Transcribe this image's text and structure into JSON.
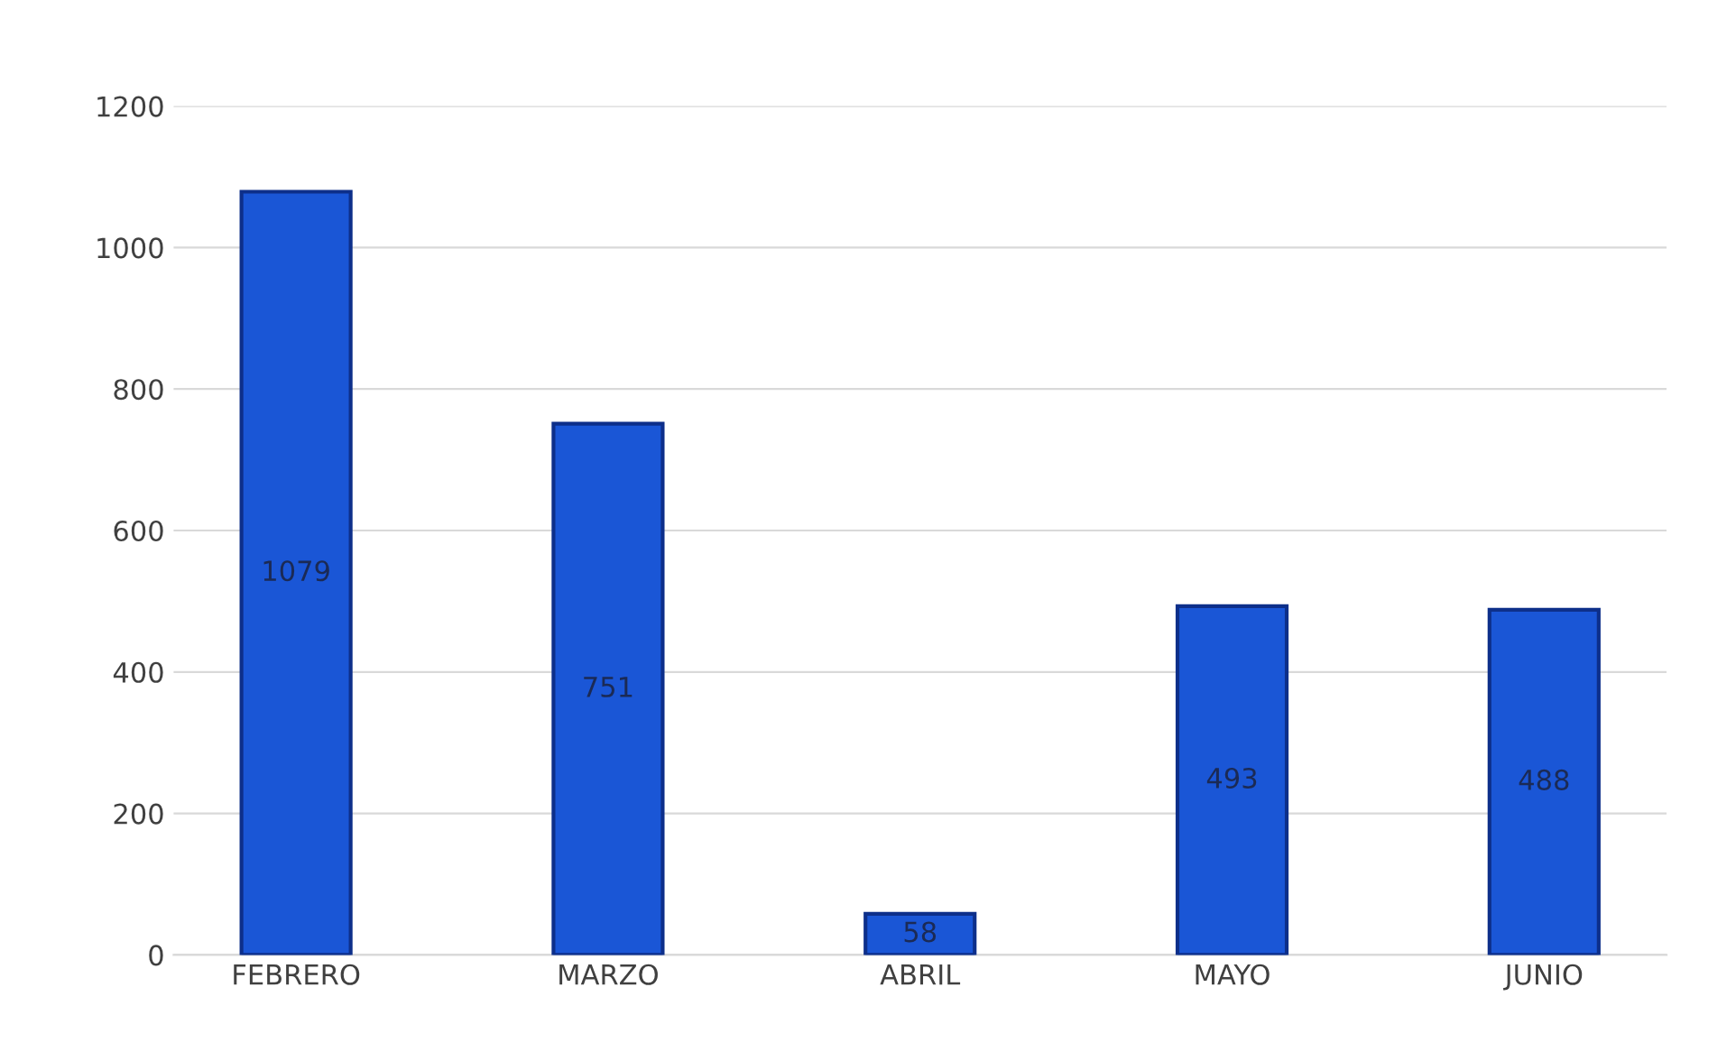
{
  "chart_data": {
    "type": "bar",
    "categories": [
      "FEBRERO",
      "MARZO",
      "ABRIL",
      "MAYO",
      "JUNIO"
    ],
    "values": [
      1079,
      751,
      58,
      493,
      488
    ],
    "color": "#1a56d6",
    "ylim": [
      0,
      1200
    ],
    "yticks": [
      0,
      200,
      400,
      600,
      800,
      1000,
      1200
    ],
    "grid": "y",
    "data_labels": true
  }
}
